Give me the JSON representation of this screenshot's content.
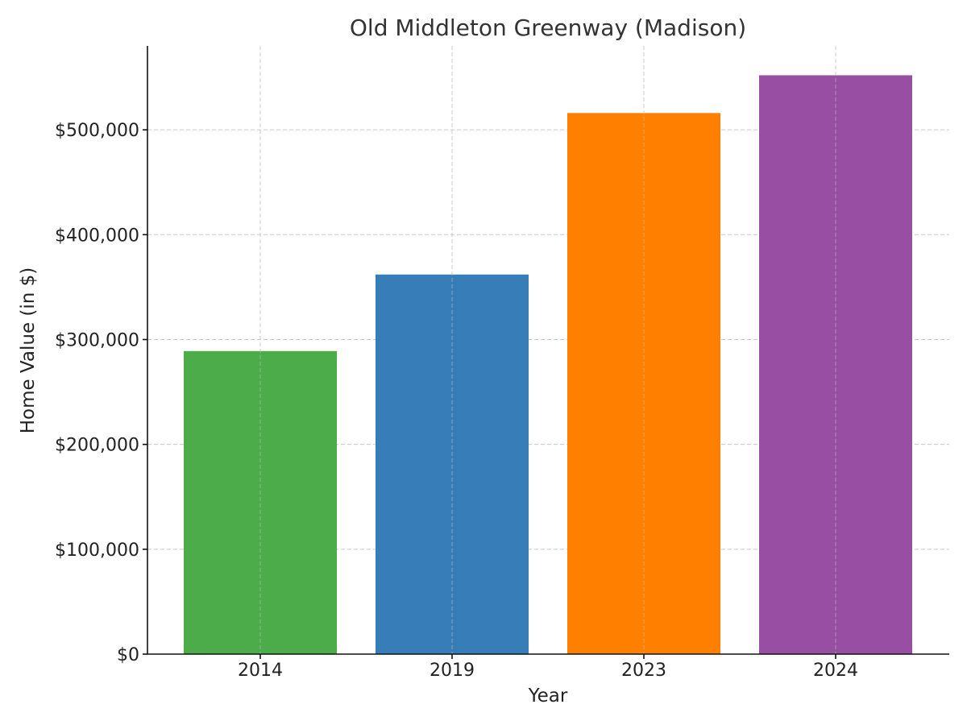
{
  "chart_data": {
    "type": "bar",
    "title": "Old Middleton Greenway (Madison)",
    "xlabel": "Year",
    "ylabel": "Home Value (in $)",
    "categories": [
      "2014",
      "2019",
      "2023",
      "2024"
    ],
    "values": [
      289000,
      362000,
      516000,
      552000
    ],
    "colors": [
      "#4dac4a",
      "#377db8",
      "#ff7f00",
      "#984ea3"
    ],
    "ylim": [
      0,
      580000
    ],
    "yticks": [
      0,
      100000,
      200000,
      300000,
      400000,
      500000
    ],
    "ytick_labels": [
      "$0",
      "$100,000",
      "$200,000",
      "$300,000",
      "$400,000",
      "$500,000"
    ],
    "grid": true,
    "legend": "none"
  }
}
